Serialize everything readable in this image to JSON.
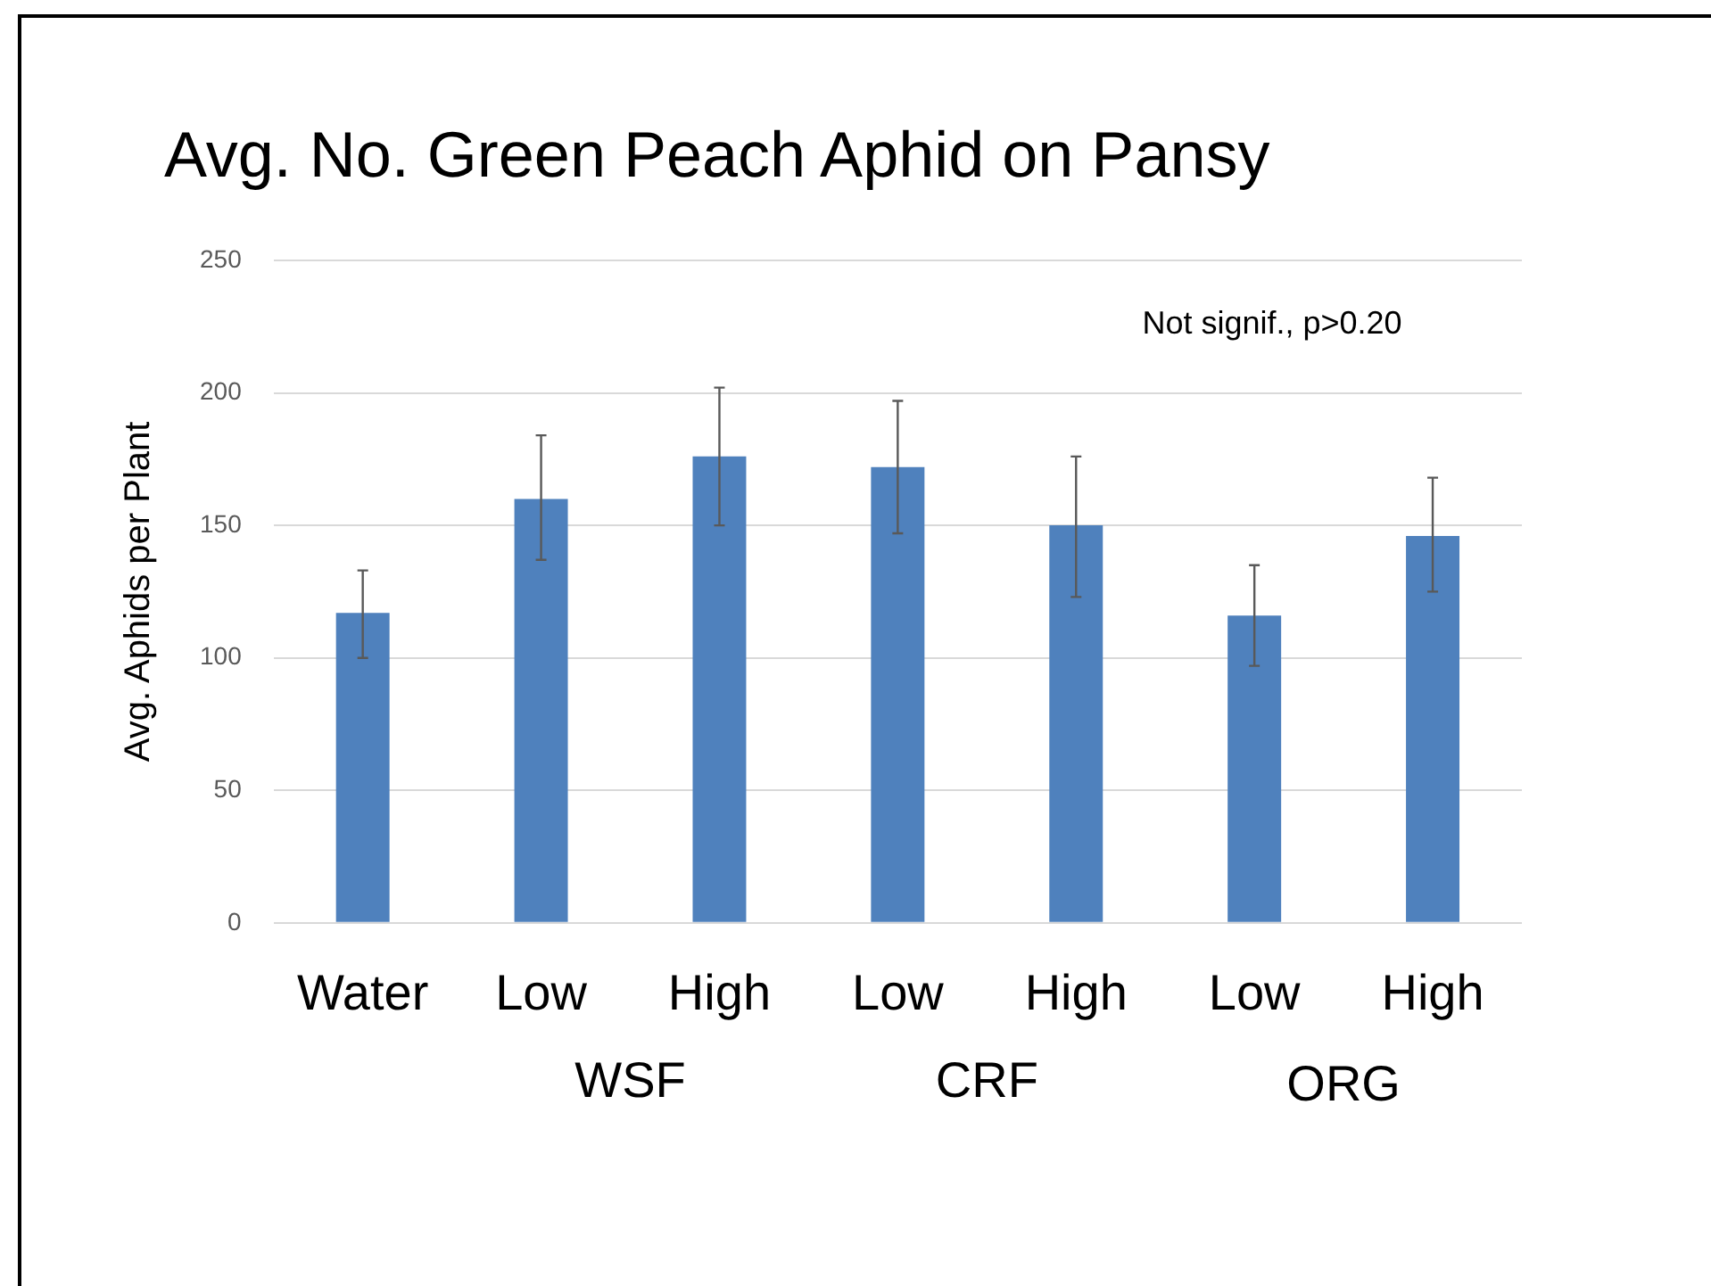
{
  "chart_data": {
    "type": "bar",
    "title": "Avg. No. Green Peach Aphid on Pansy",
    "ylabel": "Avg. Aphids per Plant",
    "categories": [
      "Water",
      "Low",
      "High",
      "Low",
      "High",
      "Low",
      "High"
    ],
    "values": [
      117,
      160,
      176,
      172,
      150,
      116,
      146
    ],
    "errors": [
      [
        100,
        133
      ],
      [
        137,
        184
      ],
      [
        150,
        202
      ],
      [
        147,
        197
      ],
      [
        123,
        176
      ],
      [
        97,
        135
      ],
      [
        125,
        168
      ]
    ],
    "color": "#4f81bd",
    "ylim": [
      0,
      250
    ],
    "yticks": [
      0,
      50,
      100,
      150,
      200,
      250
    ],
    "grid": "y",
    "annotations": [
      "Not signif., p>0.20",
      "WSF",
      "CRF",
      "ORG"
    ]
  }
}
